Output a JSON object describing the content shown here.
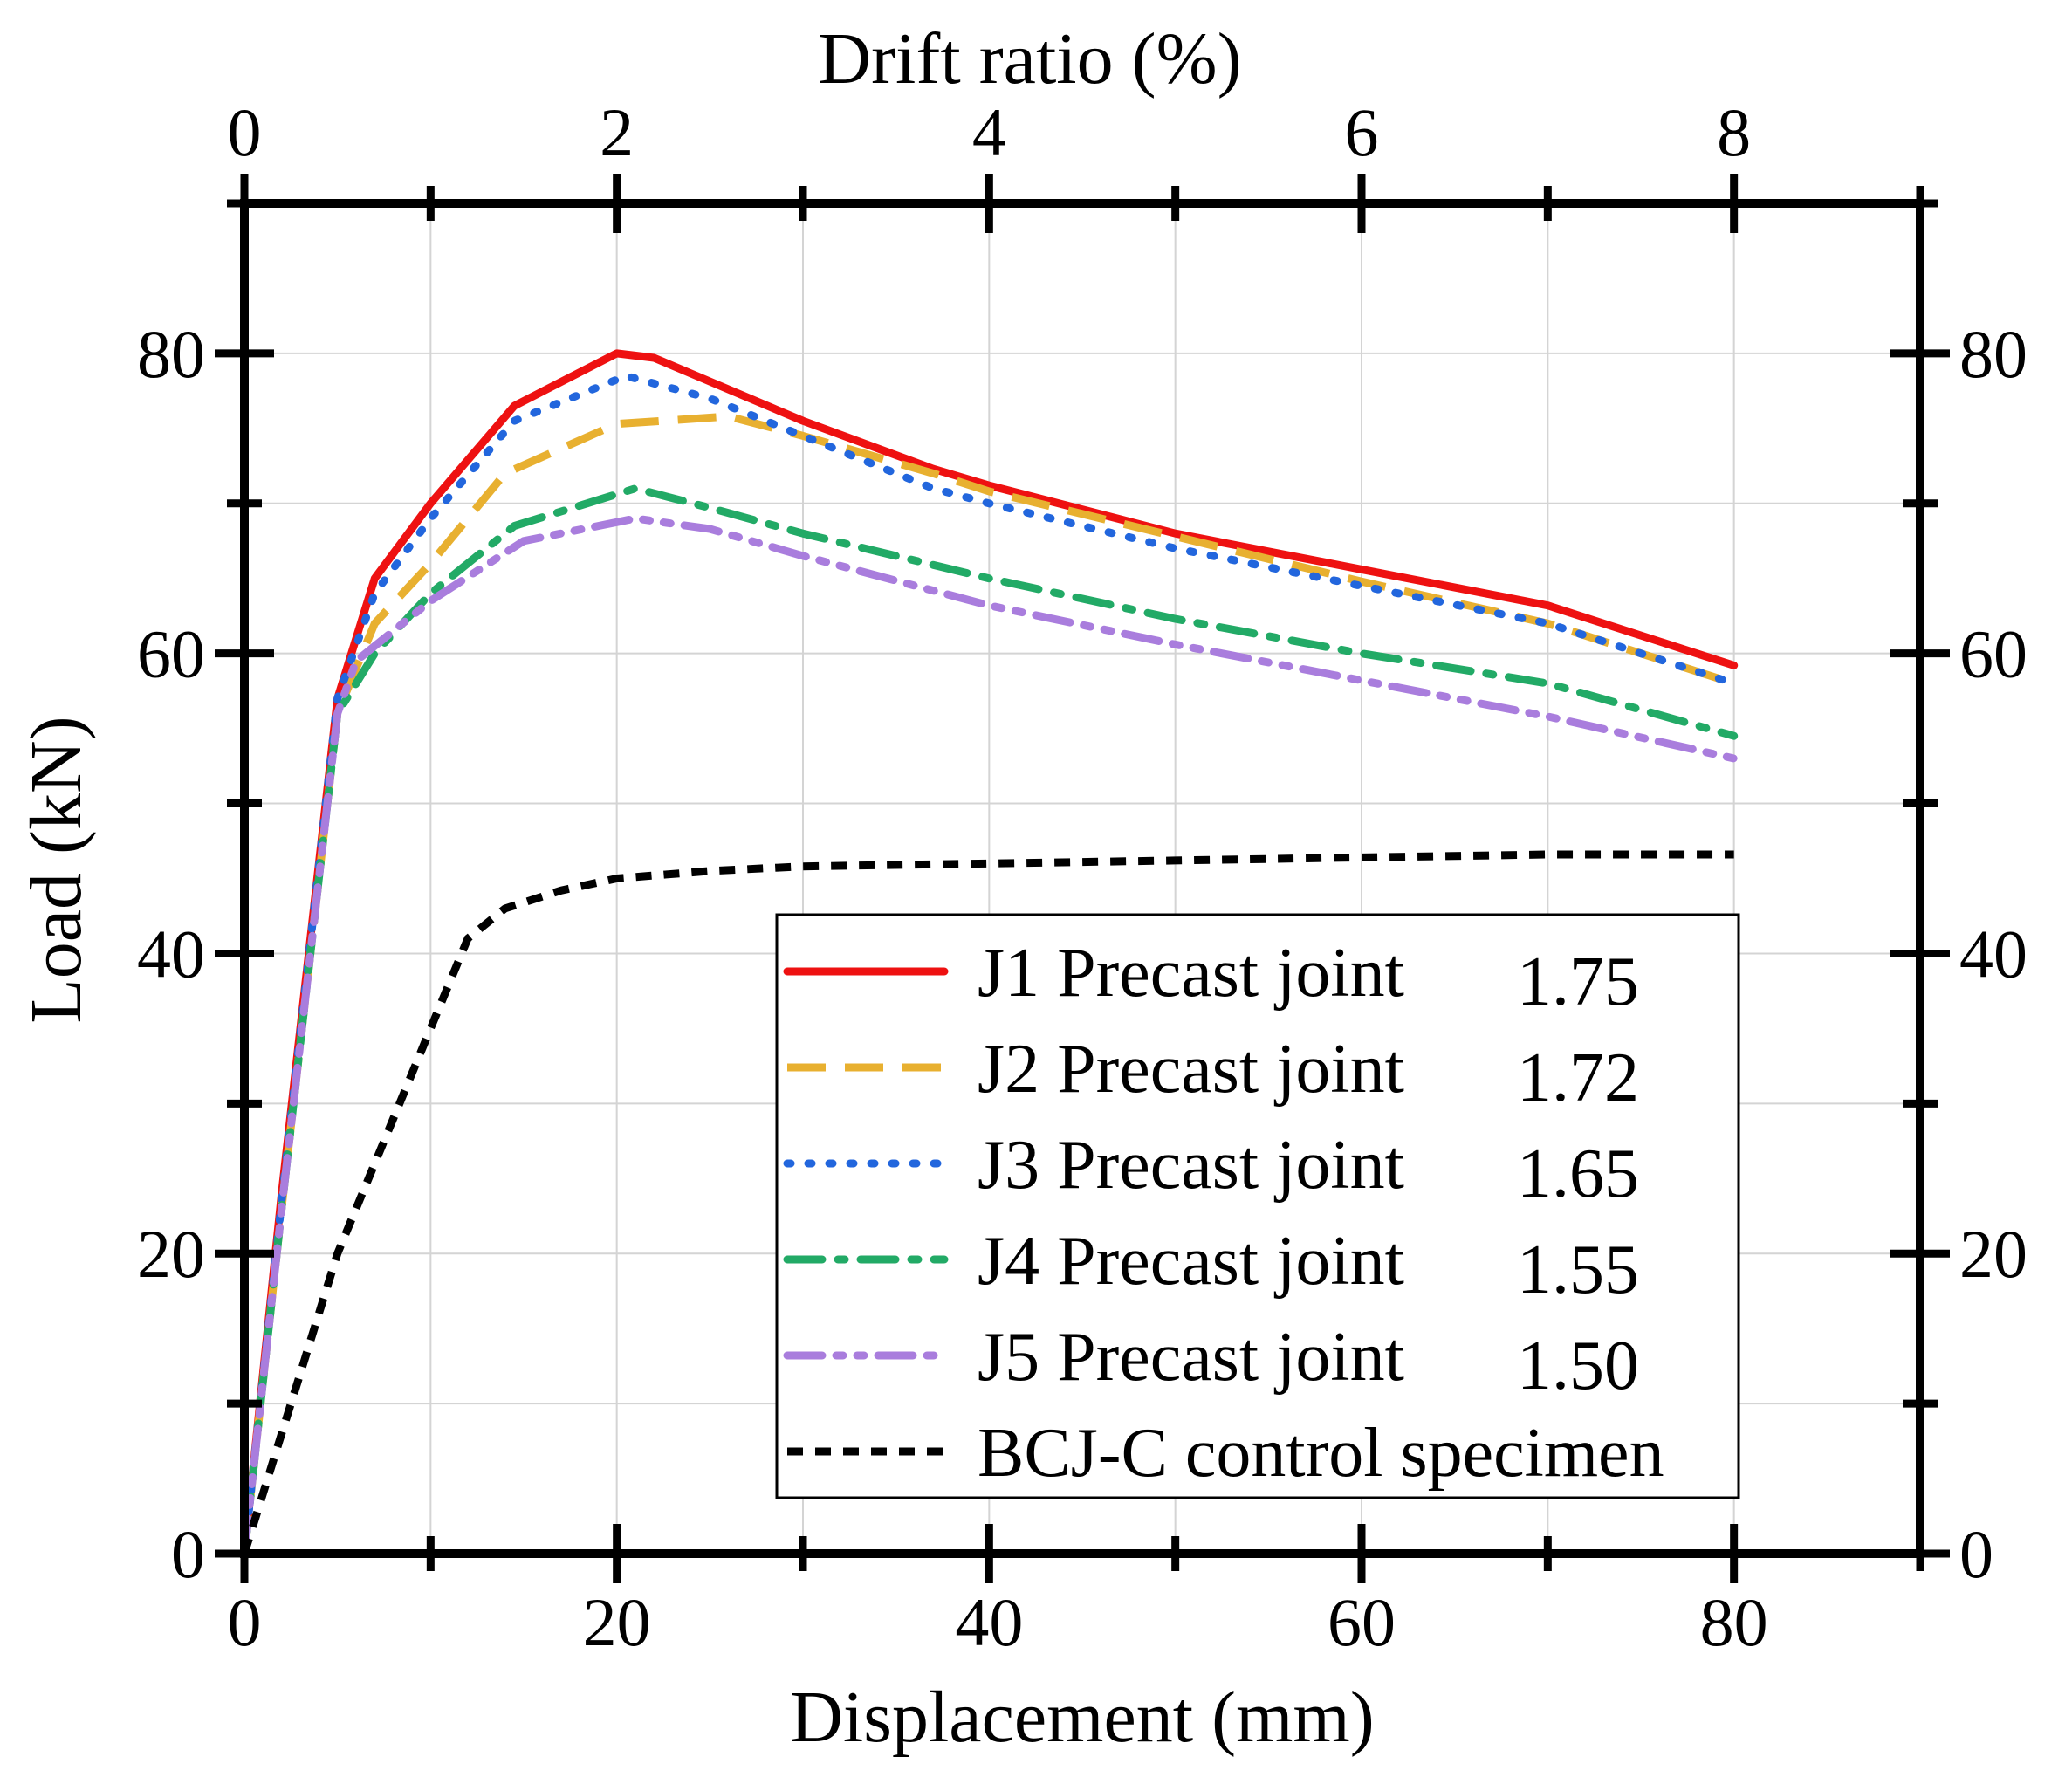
{
  "chart_data": {
    "type": "line",
    "xlabel": "Displacement (mm)",
    "ylabel": "Load (kN)",
    "top_xlabel": "Drift ratio (%)",
    "xlim": [
      0,
      90
    ],
    "ylim": [
      0,
      90
    ],
    "top_xlim": [
      0,
      9
    ],
    "x_ticks": [
      0,
      20,
      40,
      60,
      80
    ],
    "x_ticks_labels": [
      "0",
      "20",
      "40",
      "60",
      "80"
    ],
    "y_ticks": [
      0,
      20,
      40,
      60,
      80
    ],
    "y_ticks_labels": [
      "0",
      "20",
      "40",
      "60",
      "80"
    ],
    "top_ticks": [
      0,
      2,
      4,
      6,
      8
    ],
    "top_ticks_labels": [
      "0",
      "2",
      "4",
      "6",
      "8"
    ],
    "grid": true,
    "legend_position": "bottom-right",
    "series": [
      {
        "name": "J1 Precast joint",
        "ratio": "1.75",
        "color": "#ee1111",
        "style": "solid",
        "x": [
          0,
          2,
          5,
          7,
          10,
          14.5,
          20,
          22,
          30,
          37,
          40,
          50,
          60,
          70,
          80
        ],
        "y": [
          0,
          24,
          57,
          65,
          70,
          76.5,
          80,
          79.7,
          75.5,
          72.3,
          71.2,
          68,
          65.6,
          63.2,
          59.2
        ]
      },
      {
        "name": "J2 Precast joint",
        "ratio": "1.72",
        "color": "#e8b030",
        "style": "dashed",
        "x": [
          0,
          2,
          5,
          7,
          10,
          14,
          20,
          26,
          30,
          37,
          40,
          50,
          60,
          70,
          80
        ],
        "y": [
          0,
          23,
          56,
          62,
          66,
          72,
          75.3,
          75.8,
          74.5,
          72,
          70.8,
          67.8,
          64.8,
          62,
          58
        ]
      },
      {
        "name": "J3 Precast joint",
        "ratio": "1.65",
        "color": "#2266dd",
        "style": "dotted",
        "x": [
          0,
          2,
          5,
          7,
          10,
          14.5,
          20.5,
          25,
          30,
          37,
          40,
          50,
          60,
          70,
          80
        ],
        "y": [
          0,
          23.5,
          57,
          64,
          69,
          75.5,
          78.5,
          77,
          74.5,
          71,
          70,
          67,
          64.5,
          62,
          58
        ]
      },
      {
        "name": "J4 Precast joint",
        "ratio": "1.55",
        "color": "#22aa66",
        "style": "dashdot",
        "x": [
          0,
          2,
          5,
          7,
          10,
          14.5,
          21,
          25,
          30,
          40,
          50,
          60,
          70,
          80
        ],
        "y": [
          0,
          23,
          56,
          60,
          64,
          68.5,
          71,
          69.7,
          68,
          65,
          62.3,
          60,
          58,
          54.5
        ]
      },
      {
        "name": "J5 Precast joint",
        "ratio": "1.50",
        "color": "#a97ddd",
        "style": "dashdotdot",
        "x": [
          0,
          2,
          5,
          6,
          10,
          15,
          21,
          25,
          30,
          40,
          50,
          60,
          70,
          80
        ],
        "y": [
          0,
          23,
          56,
          59.5,
          63.5,
          67.5,
          69,
          68.3,
          66.5,
          63.2,
          60.6,
          58.2,
          55.8,
          53
        ]
      },
      {
        "name": "BCJ-C control specimen",
        "ratio": "",
        "color": "#000000",
        "style": "shortdash",
        "x": [
          0,
          2,
          5,
          8,
          10,
          12,
          14,
          17,
          20,
          25,
          30,
          40,
          50,
          60,
          70,
          80
        ],
        "y": [
          0,
          8,
          20,
          29,
          35,
          41,
          43,
          44.2,
          45,
          45.5,
          45.8,
          46,
          46.2,
          46.4,
          46.6,
          46.6
        ]
      }
    ]
  }
}
